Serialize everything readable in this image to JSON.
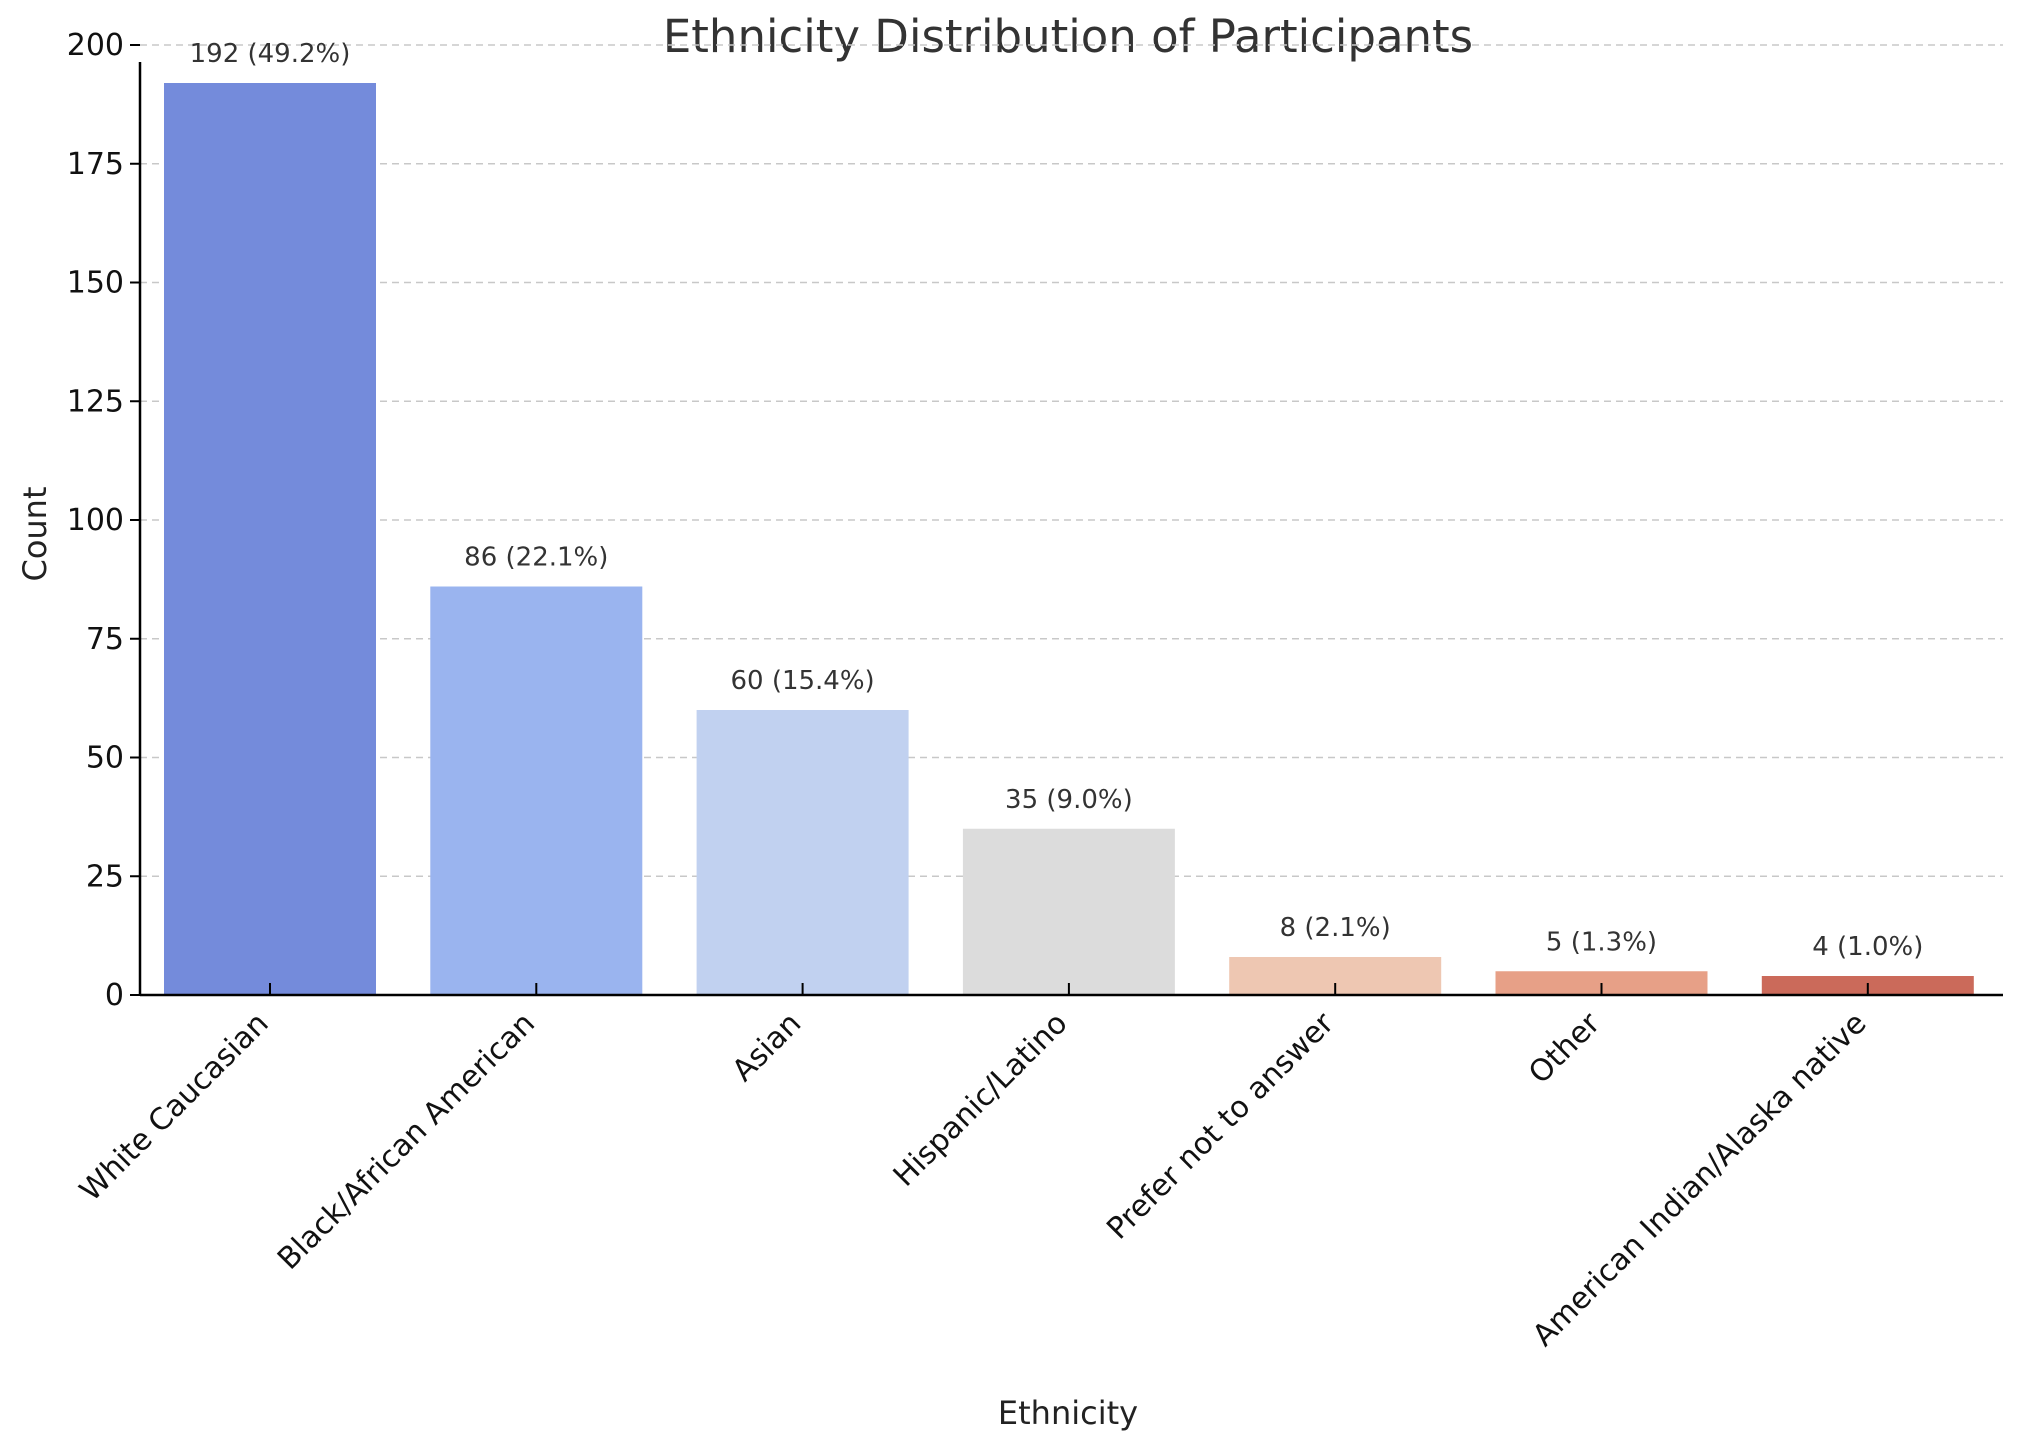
{
  "chart_data": {
    "type": "bar",
    "title": "Ethnicity Distribution of Participants",
    "xlabel": "Ethnicity",
    "ylabel": "Count",
    "ylim": [
      0,
      200
    ],
    "yticks": [
      0,
      25,
      50,
      75,
      100,
      125,
      150,
      175,
      200
    ],
    "grid": true,
    "categories": [
      "White Caucasian",
      "Black/African American",
      "Asian",
      "Hispanic/Latino",
      "Prefer not to answer",
      "Other",
      "American Indian/Alaska native"
    ],
    "values": [
      192,
      86,
      60,
      35,
      8,
      5,
      4
    ],
    "data_labels": [
      "192 (49.2%)",
      "86 (22.1%)",
      "60 (15.4%)",
      "35 (9.0%)",
      "8 (2.1%)",
      "5 (1.3%)",
      "4 (1.0%)"
    ],
    "colors": [
      "#748bdb",
      "#9ab4ef",
      "#c1d1f0",
      "#dcdcdc",
      "#eec7b2",
      "#e7a087",
      "#cb6a5a"
    ]
  }
}
